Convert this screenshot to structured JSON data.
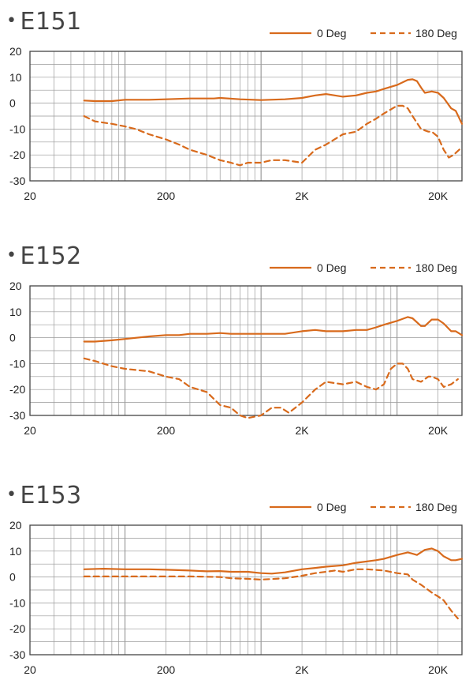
{
  "chart_data": [
    {
      "type": "line",
      "title": "E151",
      "x_scale": "log",
      "xlim": [
        20,
        30000
      ],
      "ylim": [
        -30,
        20
      ],
      "yticks": [
        20,
        10,
        0,
        -10,
        -20,
        -30
      ],
      "xtick_labels": [
        "20",
        "200",
        "2K",
        "20K"
      ],
      "xtick_values": [
        20,
        200,
        2000,
        20000
      ],
      "grid": true,
      "legend_position": "top-right",
      "series": [
        {
          "name": "0 Deg",
          "style": "solid",
          "color": "#d86a1c",
          "points": [
            [
              50,
              1
            ],
            [
              60,
              0.8
            ],
            [
              80,
              0.8
            ],
            [
              100,
              1.3
            ],
            [
              150,
              1.3
            ],
            [
              200,
              1.5
            ],
            [
              300,
              1.8
            ],
            [
              450,
              1.8
            ],
            [
              500,
              2
            ],
            [
              700,
              1.5
            ],
            [
              1000,
              1.2
            ],
            [
              1500,
              1.5
            ],
            [
              2000,
              2
            ],
            [
              2500,
              3
            ],
            [
              3000,
              3.5
            ],
            [
              4000,
              2.5
            ],
            [
              5000,
              3
            ],
            [
              6000,
              4
            ],
            [
              7000,
              4.5
            ],
            [
              8000,
              5.5
            ],
            [
              10000,
              7
            ],
            [
              12000,
              9
            ],
            [
              13000,
              9.2
            ],
            [
              14000,
              8.5
            ],
            [
              15000,
              6
            ],
            [
              16000,
              4
            ],
            [
              18000,
              4.5
            ],
            [
              20000,
              4
            ],
            [
              22000,
              2
            ],
            [
              25000,
              -2
            ],
            [
              27000,
              -3
            ],
            [
              30000,
              -8
            ]
          ]
        },
        {
          "name": "180 Deg",
          "style": "dashed",
          "color": "#d86a1c",
          "points": [
            [
              50,
              -5
            ],
            [
              60,
              -7
            ],
            [
              80,
              -8
            ],
            [
              100,
              -9
            ],
            [
              120,
              -10
            ],
            [
              150,
              -12
            ],
            [
              200,
              -14
            ],
            [
              250,
              -16
            ],
            [
              300,
              -18
            ],
            [
              400,
              -20
            ],
            [
              500,
              -22
            ],
            [
              600,
              -23
            ],
            [
              700,
              -24
            ],
            [
              800,
              -23
            ],
            [
              1000,
              -23
            ],
            [
              1200,
              -22
            ],
            [
              1500,
              -22
            ],
            [
              2000,
              -23
            ],
            [
              2500,
              -18
            ],
            [
              3000,
              -16
            ],
            [
              4000,
              -12
            ],
            [
              5000,
              -11
            ],
            [
              6000,
              -8
            ],
            [
              7000,
              -6
            ],
            [
              8000,
              -4
            ],
            [
              10000,
              -1
            ],
            [
              11000,
              -1
            ],
            [
              12000,
              -2
            ],
            [
              13000,
              -5
            ],
            [
              15000,
              -10
            ],
            [
              17000,
              -11
            ],
            [
              18000,
              -11
            ],
            [
              20000,
              -13
            ],
            [
              22000,
              -18
            ],
            [
              24000,
              -21
            ],
            [
              26000,
              -20
            ],
            [
              30000,
              -17
            ]
          ]
        }
      ]
    },
    {
      "type": "line",
      "title": "E152",
      "x_scale": "log",
      "xlim": [
        20,
        30000
      ],
      "ylim": [
        -30,
        20
      ],
      "yticks": [
        20,
        10,
        0,
        -10,
        -20,
        -30
      ],
      "xtick_labels": [
        "20",
        "200",
        "2K",
        "20K"
      ],
      "xtick_values": [
        20,
        200,
        2000,
        20000
      ],
      "grid": true,
      "legend_position": "top-right",
      "series": [
        {
          "name": "0 Deg",
          "style": "solid",
          "color": "#d86a1c",
          "points": [
            [
              50,
              -1.5
            ],
            [
              60,
              -1.5
            ],
            [
              80,
              -1
            ],
            [
              100,
              -0.5
            ],
            [
              150,
              0.5
            ],
            [
              200,
              1
            ],
            [
              250,
              1
            ],
            [
              300,
              1.5
            ],
            [
              400,
              1.5
            ],
            [
              500,
              1.8
            ],
            [
              600,
              1.5
            ],
            [
              800,
              1.5
            ],
            [
              1000,
              1.5
            ],
            [
              1500,
              1.5
            ],
            [
              2000,
              2.5
            ],
            [
              2500,
              3
            ],
            [
              3000,
              2.5
            ],
            [
              4000,
              2.5
            ],
            [
              5000,
              3
            ],
            [
              6000,
              3
            ],
            [
              7000,
              4
            ],
            [
              8000,
              5
            ],
            [
              10000,
              6.5
            ],
            [
              12000,
              8
            ],
            [
              13000,
              7.5
            ],
            [
              15000,
              4.5
            ],
            [
              16000,
              4.5
            ],
            [
              18000,
              7
            ],
            [
              20000,
              7
            ],
            [
              22000,
              5.5
            ],
            [
              25000,
              2.5
            ],
            [
              27000,
              2.5
            ],
            [
              30000,
              1
            ]
          ]
        },
        {
          "name": "180 Deg",
          "style": "dashed",
          "color": "#d86a1c",
          "points": [
            [
              50,
              -8
            ],
            [
              60,
              -9
            ],
            [
              80,
              -11
            ],
            [
              100,
              -12
            ],
            [
              150,
              -13
            ],
            [
              200,
              -15
            ],
            [
              250,
              -16
            ],
            [
              300,
              -19
            ],
            [
              400,
              -21
            ],
            [
              500,
              -26
            ],
            [
              600,
              -27
            ],
            [
              700,
              -30
            ],
            [
              800,
              -31
            ],
            [
              1000,
              -30
            ],
            [
              1200,
              -27
            ],
            [
              1400,
              -27
            ],
            [
              1600,
              -29
            ],
            [
              2000,
              -25
            ],
            [
              2500,
              -20
            ],
            [
              3000,
              -17
            ],
            [
              4000,
              -18
            ],
            [
              5000,
              -17
            ],
            [
              6000,
              -19
            ],
            [
              7000,
              -20
            ],
            [
              8000,
              -18
            ],
            [
              9000,
              -12
            ],
            [
              10000,
              -10
            ],
            [
              11000,
              -10
            ],
            [
              12000,
              -12
            ],
            [
              13000,
              -16
            ],
            [
              15000,
              -17
            ],
            [
              17000,
              -15
            ],
            [
              18000,
              -15
            ],
            [
              20000,
              -16
            ],
            [
              22000,
              -19
            ],
            [
              25000,
              -18
            ],
            [
              28000,
              -16
            ]
          ]
        }
      ]
    },
    {
      "type": "line",
      "title": "E153",
      "x_scale": "log",
      "xlim": [
        20,
        30000
      ],
      "ylim": [
        -30,
        20
      ],
      "yticks": [
        20,
        10,
        0,
        -10,
        -20,
        -30
      ],
      "xtick_labels": [
        "20",
        "200",
        "2K",
        "20K"
      ],
      "xtick_values": [
        20,
        200,
        2000,
        20000
      ],
      "grid": true,
      "legend_position": "top-right",
      "series": [
        {
          "name": "0 Deg",
          "style": "solid",
          "color": "#d86a1c",
          "points": [
            [
              50,
              3
            ],
            [
              70,
              3.2
            ],
            [
              100,
              3
            ],
            [
              150,
              3
            ],
            [
              200,
              2.8
            ],
            [
              300,
              2.5
            ],
            [
              400,
              2.2
            ],
            [
              500,
              2.3
            ],
            [
              600,
              2
            ],
            [
              800,
              2
            ],
            [
              1000,
              1.5
            ],
            [
              1200,
              1.3
            ],
            [
              1500,
              1.8
            ],
            [
              2000,
              3
            ],
            [
              2500,
              3.5
            ],
            [
              3000,
              4
            ],
            [
              4000,
              4.5
            ],
            [
              5000,
              5.5
            ],
            [
              6000,
              6
            ],
            [
              7000,
              6.5
            ],
            [
              8000,
              7
            ],
            [
              10000,
              8.5
            ],
            [
              12000,
              9.5
            ],
            [
              13000,
              9
            ],
            [
              14000,
              8.5
            ],
            [
              16000,
              10.5
            ],
            [
              18000,
              11
            ],
            [
              20000,
              10
            ],
            [
              22000,
              8
            ],
            [
              25000,
              6.5
            ],
            [
              27000,
              6.5
            ],
            [
              30000,
              7
            ]
          ]
        },
        {
          "name": "180 Deg",
          "style": "dashed",
          "color": "#d86a1c",
          "points": [
            [
              50,
              0.2
            ],
            [
              70,
              0.2
            ],
            [
              100,
              0.2
            ],
            [
              200,
              0.2
            ],
            [
              300,
              0.2
            ],
            [
              500,
              0
            ],
            [
              600,
              -0.5
            ],
            [
              800,
              -0.7
            ],
            [
              1000,
              -1
            ],
            [
              1500,
              -0.5
            ],
            [
              2000,
              0.5
            ],
            [
              2500,
              1.5
            ],
            [
              3000,
              2
            ],
            [
              3500,
              2.5
            ],
            [
              4000,
              2
            ],
            [
              5000,
              3
            ],
            [
              6000,
              3
            ],
            [
              8000,
              2.5
            ],
            [
              10000,
              1.5
            ],
            [
              12000,
              1
            ],
            [
              13000,
              -1
            ],
            [
              15000,
              -3
            ],
            [
              18000,
              -6
            ],
            [
              20000,
              -7.5
            ],
            [
              22000,
              -9
            ],
            [
              25000,
              -13
            ],
            [
              28000,
              -16
            ]
          ]
        }
      ]
    }
  ]
}
